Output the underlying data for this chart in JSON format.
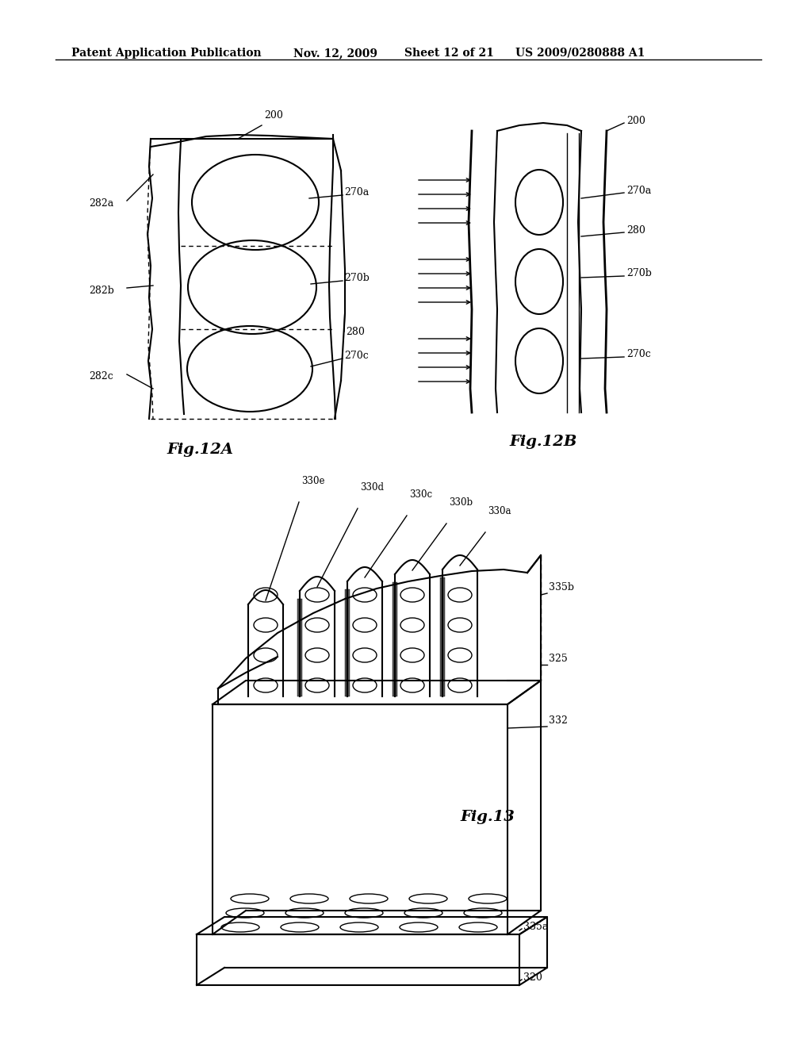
{
  "background_color": "#ffffff",
  "header_text": "Patent Application Publication",
  "header_date": "Nov. 12, 2009",
  "header_sheet": "Sheet 12 of 21",
  "header_patent": "US 2009/0280888 A1",
  "fig12a_label": "Fig.12A",
  "fig12b_label": "Fig.12B",
  "fig13_label": "Fig.13"
}
